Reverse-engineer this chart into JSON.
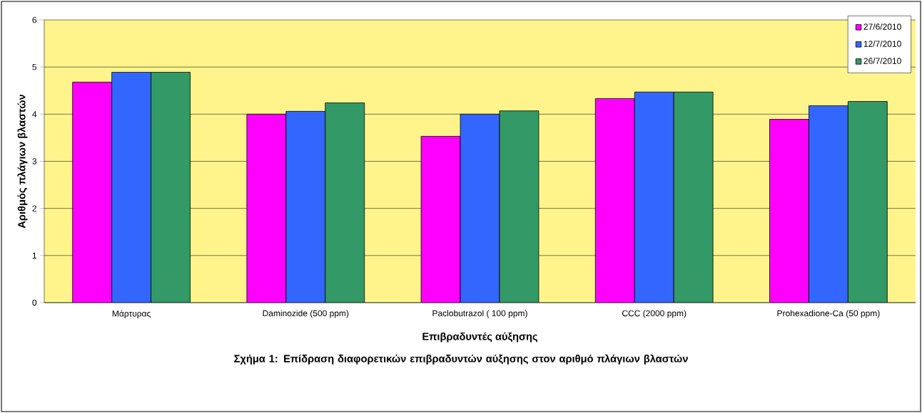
{
  "chart_data": {
    "type": "bar",
    "xlabel": "Επιβραδυντές αύξησης",
    "ylabel": "Αριθμός πλάγιων βλαστών",
    "annotations": [
      "Σχήμα 1: Επίδραση διαφορετικών επιβραδυντών αύξησης στον αριθμό πλάγιων βλαστών"
    ],
    "categories": [
      "Μάρτυρας",
      "Daminozide (500 ppm)",
      "Paclobutrazol ( 100 ppm)",
      "CCC (2000 ppm)",
      "Prohexadione-Ca (50 ppm)"
    ],
    "series": [
      {
        "name": "27/6/2010",
        "color": "#ff00ff",
        "values": [
          4.68,
          4.0,
          3.53,
          4.33,
          3.89
        ]
      },
      {
        "name": "12/7/2010",
        "color": "#3366ff",
        "values": [
          4.89,
          4.06,
          4.0,
          4.47,
          4.18
        ]
      },
      {
        "name": "26/7/2010",
        "color": "#339966",
        "values": [
          4.89,
          4.24,
          4.07,
          4.47,
          4.27
        ]
      }
    ],
    "ylim": [
      0,
      6
    ],
    "yticks": [
      0,
      1,
      2,
      3,
      4,
      5,
      6
    ],
    "grid": "y",
    "legend": "top right"
  }
}
